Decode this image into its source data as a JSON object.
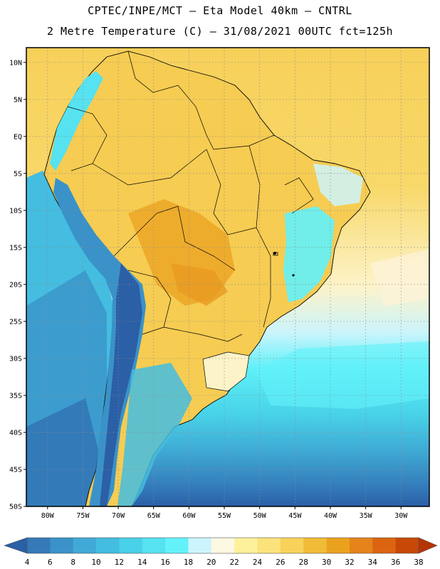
{
  "header": {
    "line1": "CPTEC/INPE/MCT –  Eta Model 40km – CNTRL",
    "line2": "2 Metre Temperature (C) – 31/08/2021 00UTC fct=125h"
  },
  "map": {
    "lat_labels": [
      "10N",
      "5N",
      "EQ",
      "5S",
      "10S",
      "15S",
      "20S",
      "25S",
      "30S",
      "35S",
      "40S",
      "45S",
      "50S"
    ],
    "lat_values": [
      10,
      5,
      0,
      -5,
      -10,
      -15,
      -20,
      -25,
      -30,
      -35,
      -40,
      -45,
      -50
    ],
    "lon_labels": [
      "80W",
      "75W",
      "70W",
      "65W",
      "60W",
      "55W",
      "50W",
      "45W",
      "40W",
      "35W",
      "30W"
    ],
    "lon_values": [
      -80,
      -75,
      -70,
      -65,
      -60,
      -55,
      -50,
      -45,
      -40,
      -35,
      -30
    ],
    "extent": {
      "lon_min": -83,
      "lon_max": -26,
      "lat_min": -50,
      "lat_max": 12
    }
  },
  "colorbar": {
    "labels": [
      "4",
      "6",
      "8",
      "10",
      "12",
      "14",
      "16",
      "18",
      "20",
      "22",
      "24",
      "26",
      "28",
      "30",
      "32",
      "34",
      "36",
      "38"
    ],
    "colors": [
      "#2b5fa6",
      "#3579b8",
      "#3a92c8",
      "#41a9d6",
      "#44bde0",
      "#48d1e8",
      "#56e2f0",
      "#63f2fa",
      "#ccf4fc",
      "#fdf8e2",
      "#fef19c",
      "#fce27a",
      "#f8d25a",
      "#f0bc38",
      "#eaa21e",
      "#e4841a",
      "#dc6410",
      "#c84808",
      "#b43404"
    ]
  },
  "palette": {
    "ocean_cold": "#2f66ab",
    "ocean_mid": "#3d9fd0",
    "ocean_warm": "#4fdcee",
    "land_warm": "#f7cf56",
    "land_hot": "#eeae2c",
    "grid": "#8c8c8c"
  }
}
